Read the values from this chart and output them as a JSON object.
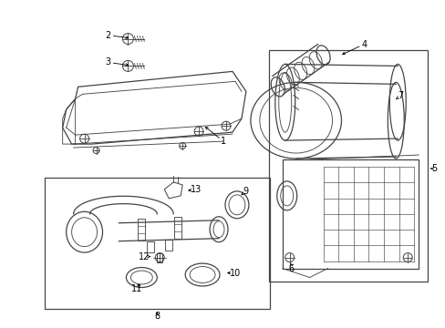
{
  "bg_color": "#ffffff",
  "line_color": "#444444",
  "label_color": "#000000",
  "fig_width": 4.89,
  "fig_height": 3.6,
  "dpi": 100,
  "label_fontsize": 7.0,
  "lw": 0.9
}
